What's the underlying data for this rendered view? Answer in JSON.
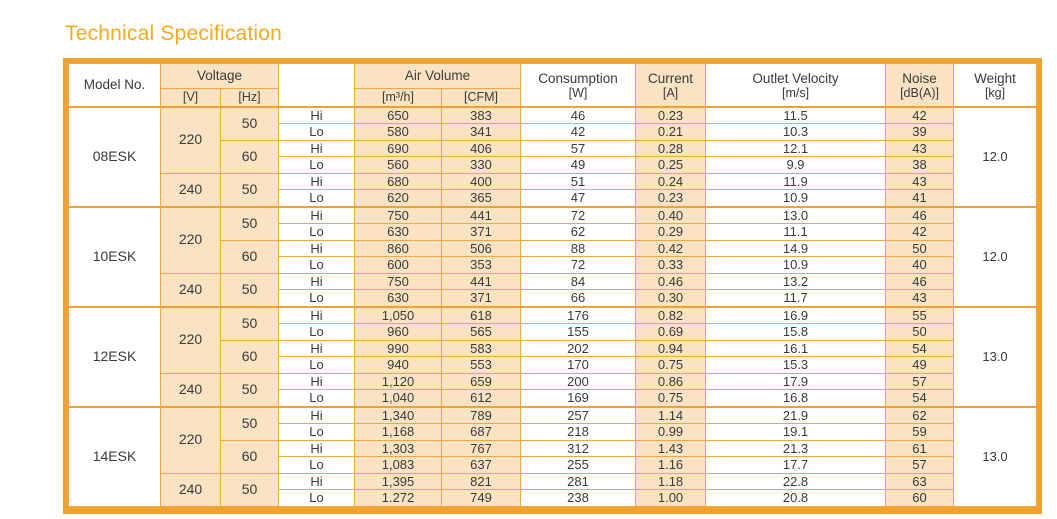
{
  "title": "Technical Specification",
  "colors": {
    "accent": "#f6a81f",
    "frame": "#efa22f",
    "line": "#f1a83c",
    "peach": "#fae3c2",
    "text": "#3a3a3c"
  },
  "table": {
    "headers": {
      "model": "Model No.",
      "voltage": "Voltage",
      "voltage_units": [
        "[V]",
        "[Hz]"
      ],
      "speed_blank": "",
      "air_volume": "Air Volume",
      "air_units": [
        "[m³/h]",
        "[CFM]"
      ],
      "consumption": "Consumption",
      "consumption_unit": "[W]",
      "current": "Current",
      "current_unit": "[A]",
      "outlet_velocity": "Outlet Velocity",
      "outlet_velocity_unit": "[m/s]",
      "noise": "Noise",
      "noise_unit": "[dB(A)]",
      "weight": "Weight",
      "weight_unit": "[kg]"
    },
    "blocks": [
      {
        "model": "08ESK",
        "weight": "12.0",
        "groups": [
          {
            "voltage": "220",
            "freqs": [
              {
                "hz": "50",
                "rows": [
                  {
                    "speed": "Hi",
                    "m3h": "650",
                    "cfm": "383",
                    "w": "46",
                    "a": "0.23",
                    "ms": "11.5",
                    "db": "42"
                  },
                  {
                    "speed": "Lo",
                    "m3h": "580",
                    "cfm": "341",
                    "w": "42",
                    "a": "0.21",
                    "ms": "10.3",
                    "db": "39"
                  }
                ]
              },
              {
                "hz": "60",
                "rows": [
                  {
                    "speed": "Hi",
                    "m3h": "690",
                    "cfm": "406",
                    "w": "57",
                    "a": "0.28",
                    "ms": "12.1",
                    "db": "43"
                  },
                  {
                    "speed": "Lo",
                    "m3h": "560",
                    "cfm": "330",
                    "w": "49",
                    "a": "0.25",
                    "ms": "9.9",
                    "db": "38"
                  }
                ]
              }
            ]
          },
          {
            "voltage": "240",
            "freqs": [
              {
                "hz": "50",
                "rows": [
                  {
                    "speed": "Hi",
                    "m3h": "680",
                    "cfm": "400",
                    "w": "51",
                    "a": "0.24",
                    "ms": "11.9",
                    "db": "43"
                  },
                  {
                    "speed": "Lo",
                    "m3h": "620",
                    "cfm": "365",
                    "w": "47",
                    "a": "0.23",
                    "ms": "10.9",
                    "db": "41"
                  }
                ]
              }
            ]
          }
        ]
      },
      {
        "model": "10ESK",
        "weight": "12.0",
        "groups": [
          {
            "voltage": "220",
            "freqs": [
              {
                "hz": "50",
                "rows": [
                  {
                    "speed": "Hi",
                    "m3h": "750",
                    "cfm": "441",
                    "w": "72",
                    "a": "0.40",
                    "ms": "13.0",
                    "db": "46"
                  },
                  {
                    "speed": "Lo",
                    "m3h": "630",
                    "cfm": "371",
                    "w": "62",
                    "a": "0.29",
                    "ms": "11.1",
                    "db": "42"
                  }
                ]
              },
              {
                "hz": "60",
                "rows": [
                  {
                    "speed": "Hi",
                    "m3h": "860",
                    "cfm": "506",
                    "w": "88",
                    "a": "0.42",
                    "ms": "14.9",
                    "db": "50"
                  },
                  {
                    "speed": "Lo",
                    "m3h": "600",
                    "cfm": "353",
                    "w": "72",
                    "a": "0.33",
                    "ms": "10.9",
                    "db": "40"
                  }
                ]
              }
            ]
          },
          {
            "voltage": "240",
            "freqs": [
              {
                "hz": "50",
                "rows": [
                  {
                    "speed": "Hi",
                    "m3h": "750",
                    "cfm": "441",
                    "w": "84",
                    "a": "0.46",
                    "ms": "13.2",
                    "db": "46"
                  },
                  {
                    "speed": "Lo",
                    "m3h": "630",
                    "cfm": "371",
                    "w": "66",
                    "a": "0.30",
                    "ms": "11.7",
                    "db": "43"
                  }
                ]
              }
            ]
          }
        ]
      },
      {
        "model": "12ESK",
        "weight": "13.0",
        "groups": [
          {
            "voltage": "220",
            "freqs": [
              {
                "hz": "50",
                "rows": [
                  {
                    "speed": "Hi",
                    "m3h": "1,050",
                    "cfm": "618",
                    "w": "176",
                    "a": "0.82",
                    "ms": "16.9",
                    "db": "55"
                  },
                  {
                    "speed": "Lo",
                    "m3h": "960",
                    "cfm": "565",
                    "w": "155",
                    "a": "0.69",
                    "ms": "15.8",
                    "db": "50"
                  }
                ]
              },
              {
                "hz": "60",
                "rows": [
                  {
                    "speed": "Hi",
                    "m3h": "990",
                    "cfm": "583",
                    "w": "202",
                    "a": "0.94",
                    "ms": "16.1",
                    "db": "54"
                  },
                  {
                    "speed": "Lo",
                    "m3h": "940",
                    "cfm": "553",
                    "w": "170",
                    "a": "0.75",
                    "ms": "15.3",
                    "db": "49"
                  }
                ]
              }
            ]
          },
          {
            "voltage": "240",
            "freqs": [
              {
                "hz": "50",
                "rows": [
                  {
                    "speed": "Hi",
                    "m3h": "1,120",
                    "cfm": "659",
                    "w": "200",
                    "a": "0.86",
                    "ms": "17.9",
                    "db": "57"
                  },
                  {
                    "speed": "Lo",
                    "m3h": "1,040",
                    "cfm": "612",
                    "w": "169",
                    "a": "0.75",
                    "ms": "16.8",
                    "db": "54"
                  }
                ]
              }
            ]
          }
        ]
      },
      {
        "model": "14ESK",
        "weight": "13.0",
        "groups": [
          {
            "voltage": "220",
            "freqs": [
              {
                "hz": "50",
                "rows": [
                  {
                    "speed": "Hi",
                    "m3h": "1,340",
                    "cfm": "789",
                    "w": "257",
                    "a": "1.14",
                    "ms": "21.9",
                    "db": "62"
                  },
                  {
                    "speed": "Lo",
                    "m3h": "1,168",
                    "cfm": "687",
                    "w": "218",
                    "a": "0.99",
                    "ms": "19.1",
                    "db": "59"
                  }
                ]
              },
              {
                "hz": "60",
                "rows": [
                  {
                    "speed": "Hi",
                    "m3h": "1,303",
                    "cfm": "767",
                    "w": "312",
                    "a": "1.43",
                    "ms": "21.3",
                    "db": "61"
                  },
                  {
                    "speed": "Lo",
                    "m3h": "1,083",
                    "cfm": "637",
                    "w": "255",
                    "a": "1.16",
                    "ms": "17.7",
                    "db": "57"
                  }
                ]
              }
            ]
          },
          {
            "voltage": "240",
            "freqs": [
              {
                "hz": "50",
                "rows": [
                  {
                    "speed": "Hi",
                    "m3h": "1,395",
                    "cfm": "821",
                    "w": "281",
                    "a": "1.18",
                    "ms": "22.8",
                    "db": "63"
                  },
                  {
                    "speed": "Lo",
                    "m3h": "1.272",
                    "cfm": "749",
                    "w": "238",
                    "a": "1.00",
                    "ms": "20.8",
                    "db": "60"
                  }
                ]
              }
            ]
          }
        ]
      }
    ]
  }
}
